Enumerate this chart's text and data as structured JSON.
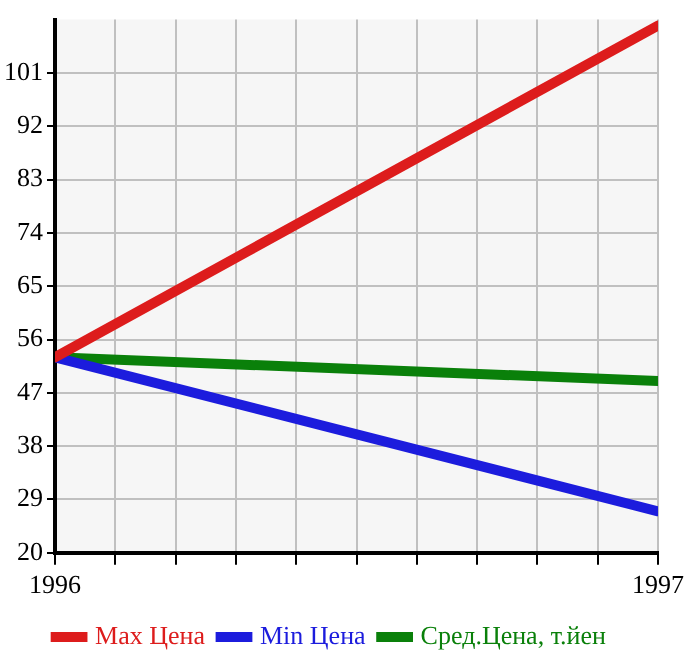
{
  "chart_data": {
    "type": "line",
    "x": [
      1996,
      1997
    ],
    "xlim": [
      1996,
      1997
    ],
    "xticks": [
      1996,
      {
        "value": 1996.1,
        "label": null
      },
      {
        "value": 1996.2,
        "label": null
      },
      {
        "value": 1996.3,
        "label": null
      },
      {
        "value": 1996.4,
        "label": null
      },
      {
        "value": 1996.5,
        "label": null
      },
      {
        "value": 1996.6,
        "label": null
      },
      {
        "value": 1996.7,
        "label": null
      },
      {
        "value": 1996.8,
        "label": null
      },
      {
        "value": 1996.9,
        "label": null
      },
      1997
    ],
    "ylim": [
      20,
      110
    ],
    "yticks": [
      20,
      29,
      38,
      47,
      56,
      65,
      74,
      83,
      92,
      101
    ],
    "series": [
      {
        "name": "Max Цена",
        "color": "#dd1c1c",
        "values": [
          53,
          109
        ]
      },
      {
        "name": "Min Цена",
        "color": "#1c1cdd",
        "values": [
          53,
          27
        ]
      },
      {
        "name": "Сред.Цена, т.йен",
        "color": "#0a800a",
        "values": [
          53,
          49
        ]
      }
    ],
    "grid": true,
    "legend": "bottom",
    "marker": "none",
    "line_style": "solid"
  }
}
